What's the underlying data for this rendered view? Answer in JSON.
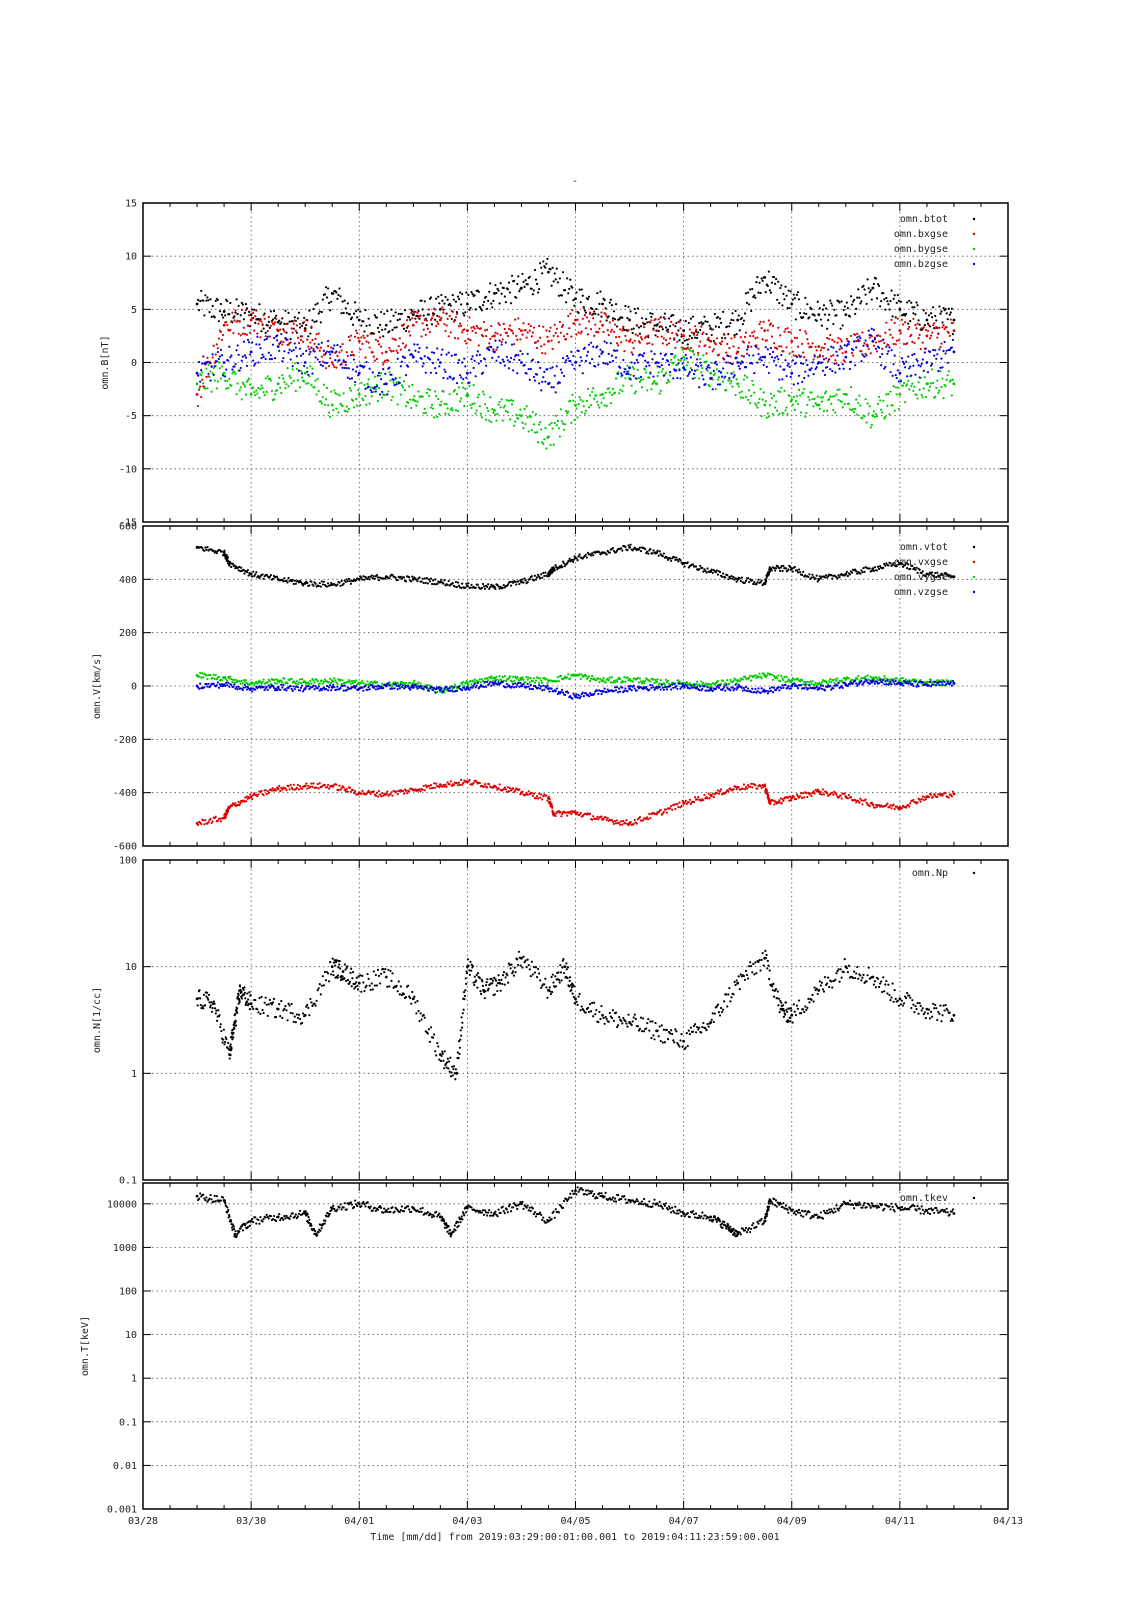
{
  "title": "-",
  "x_axis": {
    "label": "Time [mm/dd]",
    "range_text": "from 2019:03:29:00:01:00.001  to  2019:04:11:23:59:00.001",
    "ticks": [
      "03/28",
      "03/30",
      "04/01",
      "04/03",
      "04/05",
      "04/07",
      "04/09",
      "04/11",
      "04/13"
    ]
  },
  "chart_data": [
    {
      "type": "scatter",
      "ylabel": "omn.B[nT]",
      "ylim": [
        -15,
        15
      ],
      "yscale": "linear",
      "yticks": [
        -15,
        -10,
        -5,
        0,
        5,
        10,
        15
      ],
      "xlim_days": [
        0,
        16
      ],
      "grid": true,
      "legend_position": "top-right",
      "series": [
        {
          "name": "omn.btot",
          "color": "#000000",
          "x": [
            1.0,
            1.5,
            2.0,
            2.5,
            3.0,
            3.5,
            4.0,
            4.5,
            5.0,
            5.5,
            6.0,
            6.5,
            7.0,
            7.5,
            8.0,
            8.5,
            9.0,
            9.5,
            10.0,
            10.5,
            11.0,
            11.5,
            12.0,
            12.5,
            13.0,
            13.5,
            14.0,
            14.5,
            15.0
          ],
          "values": [
            5.5,
            4.8,
            4.5,
            3.8,
            3.2,
            6.5,
            4.0,
            3.5,
            4.5,
            5.0,
            5.5,
            6.5,
            7.0,
            8.5,
            6.0,
            5.5,
            4.0,
            3.5,
            3.0,
            3.2,
            4.0,
            8.0,
            5.5,
            4.5,
            4.5,
            7.0,
            5.0,
            4.0,
            4.0
          ]
        },
        {
          "name": "omn.bxgse",
          "color": "#dd0000",
          "x": [
            1.0,
            1.5,
            2.0,
            2.5,
            3.0,
            3.5,
            4.0,
            4.5,
            5.0,
            5.5,
            6.0,
            6.5,
            7.0,
            7.5,
            8.0,
            8.5,
            9.0,
            9.5,
            10.0,
            10.5,
            11.0,
            11.5,
            12.0,
            12.5,
            13.0,
            13.5,
            14.0,
            14.5,
            15.0
          ],
          "values": [
            -3.0,
            3.5,
            4.0,
            3.0,
            3.0,
            0.0,
            2.0,
            1.0,
            3.5,
            4.0,
            3.0,
            2.5,
            3.0,
            2.0,
            4.0,
            3.5,
            2.0,
            3.0,
            2.5,
            2.0,
            1.0,
            3.0,
            2.0,
            1.5,
            1.0,
            2.0,
            3.0,
            2.5,
            3.0
          ]
        },
        {
          "name": "omn.bygse",
          "color": "#00cc00",
          "x": [
            1.0,
            1.5,
            2.0,
            2.5,
            3.0,
            3.5,
            4.0,
            4.5,
            5.0,
            5.5,
            6.0,
            6.5,
            7.0,
            7.5,
            8.0,
            8.5,
            9.0,
            9.5,
            10.0,
            10.5,
            11.0,
            11.5,
            12.0,
            12.5,
            13.0,
            13.5,
            14.0,
            14.5,
            15.0
          ],
          "values": [
            -2.0,
            -1.0,
            -3.0,
            -2.0,
            -1.0,
            -4.0,
            -3.0,
            -2.0,
            -3.5,
            -4.0,
            -3.0,
            -4.5,
            -5.0,
            -7.0,
            -4.0,
            -3.0,
            -1.5,
            -2.0,
            0.5,
            -1.0,
            -2.0,
            -4.0,
            -3.5,
            -4.0,
            -3.0,
            -5.0,
            -3.0,
            -2.0,
            -2.0
          ]
        },
        {
          "name": "omn.bzgse",
          "color": "#0000dd",
          "x": [
            1.0,
            1.5,
            2.0,
            2.5,
            3.0,
            3.5,
            4.0,
            4.5,
            5.0,
            5.5,
            6.0,
            6.5,
            7.0,
            7.5,
            8.0,
            8.5,
            9.0,
            9.5,
            10.0,
            10.5,
            11.0,
            11.5,
            12.0,
            12.5,
            13.0,
            13.5,
            14.0,
            14.5,
            15.0
          ],
          "values": [
            -1.0,
            0.0,
            1.0,
            1.5,
            0.0,
            1.0,
            -1.0,
            -2.0,
            0.5,
            0.0,
            -1.0,
            1.0,
            0.0,
            -2.0,
            0.0,
            1.0,
            -0.5,
            0.0,
            -0.5,
            -1.5,
            0.0,
            0.5,
            -1.0,
            0.0,
            0.5,
            2.0,
            -1.0,
            0.0,
            1.0
          ]
        }
      ]
    },
    {
      "type": "scatter",
      "ylabel": "omn.V[km/s]",
      "ylim": [
        -600,
        600
      ],
      "yscale": "linear",
      "yticks": [
        -600,
        -400,
        -200,
        0,
        200,
        400,
        600
      ],
      "xlim_days": [
        0,
        16
      ],
      "grid": true,
      "legend_position": "top-right",
      "series": [
        {
          "name": "omn.vtot",
          "color": "#000000",
          "x": [
            1.0,
            1.5,
            1.6,
            2.0,
            2.5,
            3.0,
            3.5,
            4.0,
            4.5,
            5.0,
            5.5,
            6.0,
            6.5,
            7.0,
            7.5,
            7.6,
            8.0,
            8.5,
            9.0,
            9.5,
            10.0,
            10.5,
            11.0,
            11.5,
            11.6,
            12.0,
            12.5,
            13.0,
            13.5,
            14.0,
            14.5,
            15.0
          ],
          "values": [
            520,
            500,
            460,
            420,
            400,
            385,
            380,
            400,
            410,
            400,
            390,
            375,
            370,
            390,
            420,
            440,
            480,
            500,
            520,
            500,
            460,
            430,
            400,
            385,
            440,
            440,
            400,
            420,
            440,
            460,
            420,
            410
          ]
        },
        {
          "name": "omn.vxgse",
          "color": "#dd0000",
          "x": [
            1.0,
            1.5,
            1.6,
            2.0,
            2.5,
            3.0,
            3.5,
            4.0,
            4.5,
            5.0,
            5.5,
            6.0,
            6.5,
            7.0,
            7.5,
            7.6,
            8.0,
            8.5,
            9.0,
            9.5,
            10.0,
            10.5,
            11.0,
            11.5,
            11.6,
            12.0,
            12.5,
            13.0,
            13.5,
            14.0,
            14.5,
            15.0
          ],
          "values": [
            -515,
            -495,
            -455,
            -415,
            -385,
            -375,
            -375,
            -400,
            -405,
            -390,
            -370,
            -360,
            -375,
            -400,
            -420,
            -480,
            -475,
            -500,
            -515,
            -480,
            -440,
            -410,
            -380,
            -375,
            -440,
            -420,
            -395,
            -415,
            -445,
            -455,
            -415,
            -405
          ]
        },
        {
          "name": "omn.vygse",
          "color": "#00cc00",
          "x": [
            1.0,
            1.5,
            2.0,
            2.5,
            3.0,
            3.5,
            4.0,
            4.5,
            5.0,
            5.5,
            6.0,
            6.5,
            7.0,
            7.5,
            8.0,
            8.5,
            9.0,
            9.5,
            10.0,
            10.5,
            11.0,
            11.5,
            12.0,
            12.5,
            13.0,
            13.5,
            14.0,
            14.5,
            15.0
          ],
          "values": [
            40,
            30,
            10,
            20,
            15,
            20,
            10,
            5,
            10,
            -20,
            10,
            30,
            25,
            20,
            40,
            20,
            25,
            15,
            10,
            5,
            20,
            40,
            20,
            10,
            25,
            30,
            20,
            15,
            10
          ]
        },
        {
          "name": "omn.vzgse",
          "color": "#0000dd",
          "x": [
            1.0,
            1.5,
            2.0,
            2.5,
            3.0,
            3.5,
            4.0,
            4.5,
            5.0,
            5.5,
            6.0,
            6.5,
            7.0,
            7.5,
            8.0,
            8.5,
            9.0,
            9.5,
            10.0,
            10.5,
            11.0,
            11.5,
            12.0,
            12.5,
            13.0,
            13.5,
            14.0,
            14.5,
            15.0
          ],
          "values": [
            0,
            5,
            -10,
            -5,
            -10,
            -5,
            -10,
            0,
            -5,
            -15,
            -5,
            10,
            0,
            -10,
            -40,
            -20,
            -10,
            -5,
            0,
            -10,
            -5,
            -20,
            0,
            -10,
            5,
            20,
            10,
            5,
            10
          ]
        }
      ]
    },
    {
      "type": "scatter",
      "ylabel": "omn.N[1/cc]",
      "ylim": [
        0.1,
        100
      ],
      "yscale": "log",
      "yticks": [
        0.1,
        1,
        10,
        100
      ],
      "xlim_days": [
        0,
        16
      ],
      "grid": true,
      "legend_position": "top-right",
      "series": [
        {
          "name": "omn.Np",
          "color": "#000000",
          "x": [
            1.0,
            1.3,
            1.6,
            1.7,
            1.8,
            2.0,
            2.5,
            3.0,
            3.5,
            3.7,
            4.0,
            4.5,
            5.0,
            5.5,
            5.8,
            6.0,
            6.3,
            6.6,
            7.0,
            7.5,
            7.8,
            8.0,
            8.5,
            9.0,
            9.5,
            10.0,
            10.5,
            11.0,
            11.5,
            11.8,
            12.0,
            12.5,
            13.0,
            13.5,
            14.0,
            14.5,
            15.0
          ],
          "values": [
            5.0,
            4.5,
            1.5,
            3.0,
            6.0,
            4.5,
            4.0,
            3.5,
            10.0,
            9.0,
            7.0,
            8.0,
            5.0,
            1.5,
            1.0,
            10.0,
            6.0,
            7.0,
            12.0,
            6.0,
            10.0,
            5.0,
            3.5,
            3.0,
            2.5,
            2.0,
            3.0,
            7.0,
            12.0,
            4.0,
            3.5,
            6.0,
            10.0,
            8.0,
            5.0,
            4.0,
            3.5
          ]
        }
      ]
    },
    {
      "type": "scatter",
      "ylabel": "omn.T[keV]",
      "ylim": [
        0.001,
        30000
      ],
      "yscale": "log",
      "yticks": [
        0.001,
        0.01,
        0.1,
        1,
        10,
        100,
        1000,
        10000
      ],
      "ytick_labels": [
        "0.001",
        "0.01",
        "0.1",
        "1",
        "10",
        "100",
        "1000",
        "10000"
      ],
      "xlim_days": [
        0,
        16
      ],
      "grid": true,
      "legend_position": "top-right",
      "series": [
        {
          "name": "omn.tkev",
          "color": "#000000",
          "x": [
            1.0,
            1.5,
            1.7,
            2.0,
            2.5,
            3.0,
            3.2,
            3.5,
            4.0,
            4.5,
            5.0,
            5.5,
            5.7,
            6.0,
            6.5,
            7.0,
            7.5,
            8.0,
            8.5,
            9.0,
            9.5,
            10.0,
            10.5,
            10.8,
            11.0,
            11.5,
            11.6,
            12.0,
            12.5,
            13.0,
            13.5,
            14.0,
            14.5,
            15.0
          ],
          "values": [
            15000,
            12000,
            2000,
            4000,
            5000,
            6000,
            2000,
            8000,
            10000,
            7000,
            8000,
            5000,
            2000,
            8000,
            6000,
            10000,
            4000,
            20000,
            15000,
            12000,
            10000,
            6000,
            5000,
            3000,
            2000,
            4000,
            12000,
            7000,
            5000,
            10000,
            9000,
            8000,
            7000,
            6000
          ]
        }
      ]
    }
  ]
}
